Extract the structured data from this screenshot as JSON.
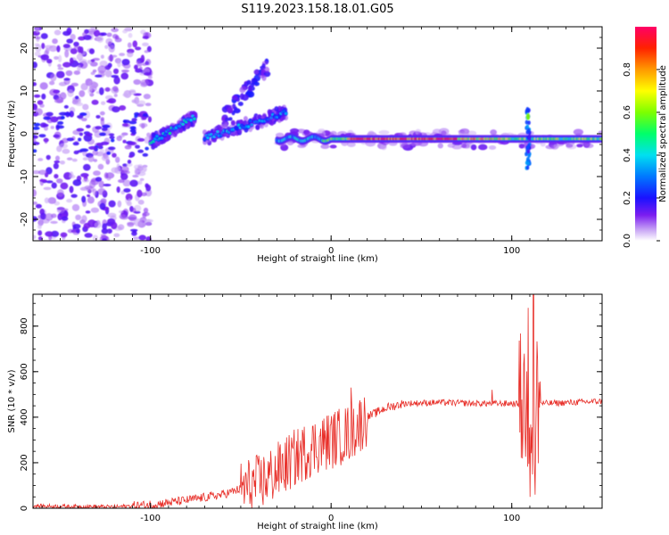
{
  "title": "S119.2023.158.18.01.G05",
  "chart_data": [
    {
      "type": "heatmap",
      "title": "S119.2023.158.18.01.G05",
      "xlabel": "Height of straight line (km)",
      "ylabel": "Frequency (Hz)",
      "xlim": [
        -165,
        150
      ],
      "ylim": [
        -25,
        25
      ],
      "xticks": [
        -100,
        0,
        100
      ],
      "yticks": [
        -20,
        -10,
        0,
        10,
        20
      ],
      "colorbar": {
        "label": "Normalized spectral amplitude",
        "ticks": [
          0.0,
          0.2,
          0.4,
          0.6,
          0.8
        ],
        "range": [
          0,
          1
        ]
      },
      "features": [
        {
          "segment": "diffuse scatter",
          "x": [
            -165,
            -100
          ],
          "frequency": [
            -25,
            25
          ],
          "amplitude": 0.1
        },
        {
          "segment": "upward branch",
          "x": [
            -100,
            -75
          ],
          "frequency": [
            -2,
            4
          ],
          "amplitude": 0.45
        },
        {
          "segment": "rising streak",
          "x": [
            -60,
            -35
          ],
          "frequency": [
            3,
            16
          ],
          "amplitude": 0.2
        },
        {
          "segment": "noisy band",
          "x": [
            -70,
            -25
          ],
          "frequency": [
            -1,
            5
          ],
          "amplitude": 0.35
        },
        {
          "segment": "main band",
          "x": [
            -30,
            150
          ],
          "frequency": [
            -1.5,
            -1
          ],
          "amplitude": 0.8
        },
        {
          "segment": "vertical spike",
          "x": [
            108,
            110
          ],
          "frequency": [
            -8,
            6
          ],
          "amplitude": 0.6
        }
      ]
    },
    {
      "type": "line",
      "xlabel": "Height of straight line (km)",
      "ylabel": "SNR (10 * v/v)",
      "xlim": [
        -165,
        150
      ],
      "ylim": [
        0,
        940
      ],
      "xticks": [
        -100,
        0,
        100
      ],
      "yticks": [
        0,
        200,
        400,
        600,
        800
      ],
      "color": "#e8302a",
      "trend": {
        "x": [
          -165,
          -120,
          -100,
          -80,
          -60,
          -40,
          -30,
          -20,
          -10,
          0,
          10,
          20,
          30,
          40,
          60,
          80,
          100,
          106,
          112,
          118,
          150
        ],
        "y": [
          10,
          6,
          15,
          35,
          60,
          110,
          160,
          220,
          270,
          300,
          330,
          400,
          440,
          460,
          465,
          460,
          460,
          455,
          470,
          460,
          470
        ]
      },
      "spikes": [
        {
          "x": 11,
          "y": 530
        },
        {
          "x": 89,
          "y": 520
        },
        {
          "x": 109,
          "y": 880
        },
        {
          "x": 110,
          "y": 50
        },
        {
          "x": 112,
          "y": 940
        },
        {
          "x": 113,
          "y": 60
        }
      ]
    }
  ]
}
